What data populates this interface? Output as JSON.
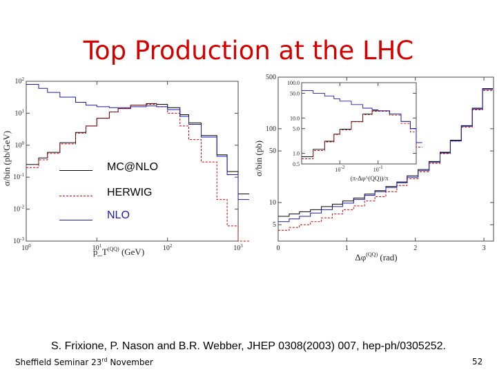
{
  "title": "Top Production at the LHC",
  "legend": [
    {
      "label": "MC@NLO",
      "color": "#000000",
      "style": "solid"
    },
    {
      "label": "HERWIG",
      "color": "#cc0000",
      "style": "dashed"
    },
    {
      "label": "NLO",
      "color": "#1a1aaa",
      "style": "solid"
    }
  ],
  "citation": "S. Frixione, P. Nason and B.R. Webber, JHEP 0308(2003) 007, hep-ph/0305252.",
  "footer": {
    "left_prefix": "Sheffield Seminar 23",
    "left_sup": "rd",
    "left_suffix": " November",
    "page": "52"
  },
  "chart_data": [
    {
      "type": "line",
      "xlabel": "p_T^(QQ) (GeV)",
      "ylabel": "σ/bin (pb/GeV)",
      "xscale": "log",
      "yscale": "log",
      "xlim": [
        1,
        1000
      ],
      "ylim": [
        0.001,
        100
      ],
      "x_ticks": [
        "10^0",
        "10^1",
        "10^2",
        "10^3"
      ],
      "y_ticks": [
        "10^-3",
        "10^-2",
        "10^-1",
        "10^0",
        "10^1",
        "10^2"
      ],
      "x": [
        1,
        1.5,
        2,
        3,
        5,
        7,
        10,
        15,
        20,
        30,
        50,
        70,
        100,
        150,
        200,
        300,
        500,
        700,
        1000
      ],
      "series": [
        {
          "name": "MC@NLO",
          "values": [
            0.25,
            0.4,
            0.6,
            1.2,
            2.5,
            4,
            7,
            11,
            14,
            18,
            20,
            19,
            15,
            9,
            5,
            2,
            0.5,
            0.15,
            0.03
          ]
        },
        {
          "name": "HERWIG",
          "values": [
            0.2,
            0.35,
            0.55,
            1.1,
            2.4,
            4,
            7,
            11,
            14,
            18,
            19,
            16,
            10,
            4,
            1.5,
            0.3,
            0.02,
            0.003,
            0.001
          ]
        },
        {
          "name": "NLO",
          "values": [
            80,
            60,
            45,
            32,
            22,
            18,
            16,
            15,
            15,
            16,
            17,
            16,
            13,
            8,
            4.5,
            1.8,
            0.45,
            0.12,
            0.02
          ]
        }
      ]
    },
    {
      "type": "line",
      "xlabel": "Δφ^(QQ) (rad)",
      "ylabel": "σ/bin (pb)",
      "yscale": "log",
      "xlim": [
        0,
        3.14
      ],
      "ylim": [
        3,
        500
      ],
      "x_ticks": [
        "0",
        "1",
        "2",
        "3"
      ],
      "y_ticks": [
        "5",
        "10",
        "50",
        "100",
        "500"
      ],
      "x": [
        0,
        0.16,
        0.31,
        0.47,
        0.63,
        0.79,
        0.94,
        1.1,
        1.26,
        1.41,
        1.57,
        1.73,
        1.88,
        2.04,
        2.2,
        2.36,
        2.51,
        2.67,
        2.83,
        2.98
      ],
      "series": [
        {
          "name": "MC@NLO",
          "values": [
            6.5,
            7,
            7.5,
            8,
            8.8,
            9.5,
            10.5,
            11.5,
            13,
            14.5,
            16.5,
            19,
            23,
            28,
            36,
            48,
            70,
            110,
            190,
            350
          ]
        },
        {
          "name": "HERWIG",
          "values": [
            4.2,
            4.6,
            5,
            5.5,
            6.2,
            7,
            8,
            9,
            10.5,
            12,
            14,
            17,
            21,
            26,
            34,
            46,
            68,
            105,
            180,
            330
          ]
        },
        {
          "name": "NLO",
          "values": [
            5.5,
            6,
            6.5,
            7.2,
            8,
            8.8,
            9.8,
            11,
            12.5,
            14,
            16,
            18.5,
            22,
            27,
            35,
            47,
            68,
            108,
            185,
            340
          ]
        }
      ],
      "inset": {
        "xlabel": "(π-Δφ^(QQ))/π",
        "xscale": "log",
        "yscale": "log",
        "xlim": [
          0.001,
          1
        ],
        "ylim": [
          0.5,
          100
        ],
        "x_ticks": [
          "10^-2",
          "10^-1"
        ],
        "y_ticks": [
          "0.5",
          "1.0",
          "5.0",
          "10.0",
          "50.0",
          "100.0"
        ],
        "x": [
          0.001,
          0.002,
          0.004,
          0.007,
          0.01,
          0.02,
          0.04,
          0.07,
          0.1,
          0.2,
          0.4,
          0.7,
          1
        ],
        "series": [
          {
            "name": "MC@NLO",
            "values": [
              0.8,
              1.3,
              2.2,
              3.5,
              4.8,
              8,
              13,
              16,
              16,
              13,
              8,
              5,
              2
            ]
          },
          {
            "name": "HERWIG",
            "values": [
              0.7,
              1.2,
              2.1,
              3.4,
              4.6,
              7.8,
              12.5,
              15.5,
              15.5,
              12,
              7,
              4,
              1.5
            ]
          },
          {
            "name": "NLO",
            "values": [
              60,
              50,
              42,
              35,
              30,
              24,
              19,
              17,
              16,
              13,
              8,
              5,
              2
            ]
          }
        ]
      }
    }
  ]
}
